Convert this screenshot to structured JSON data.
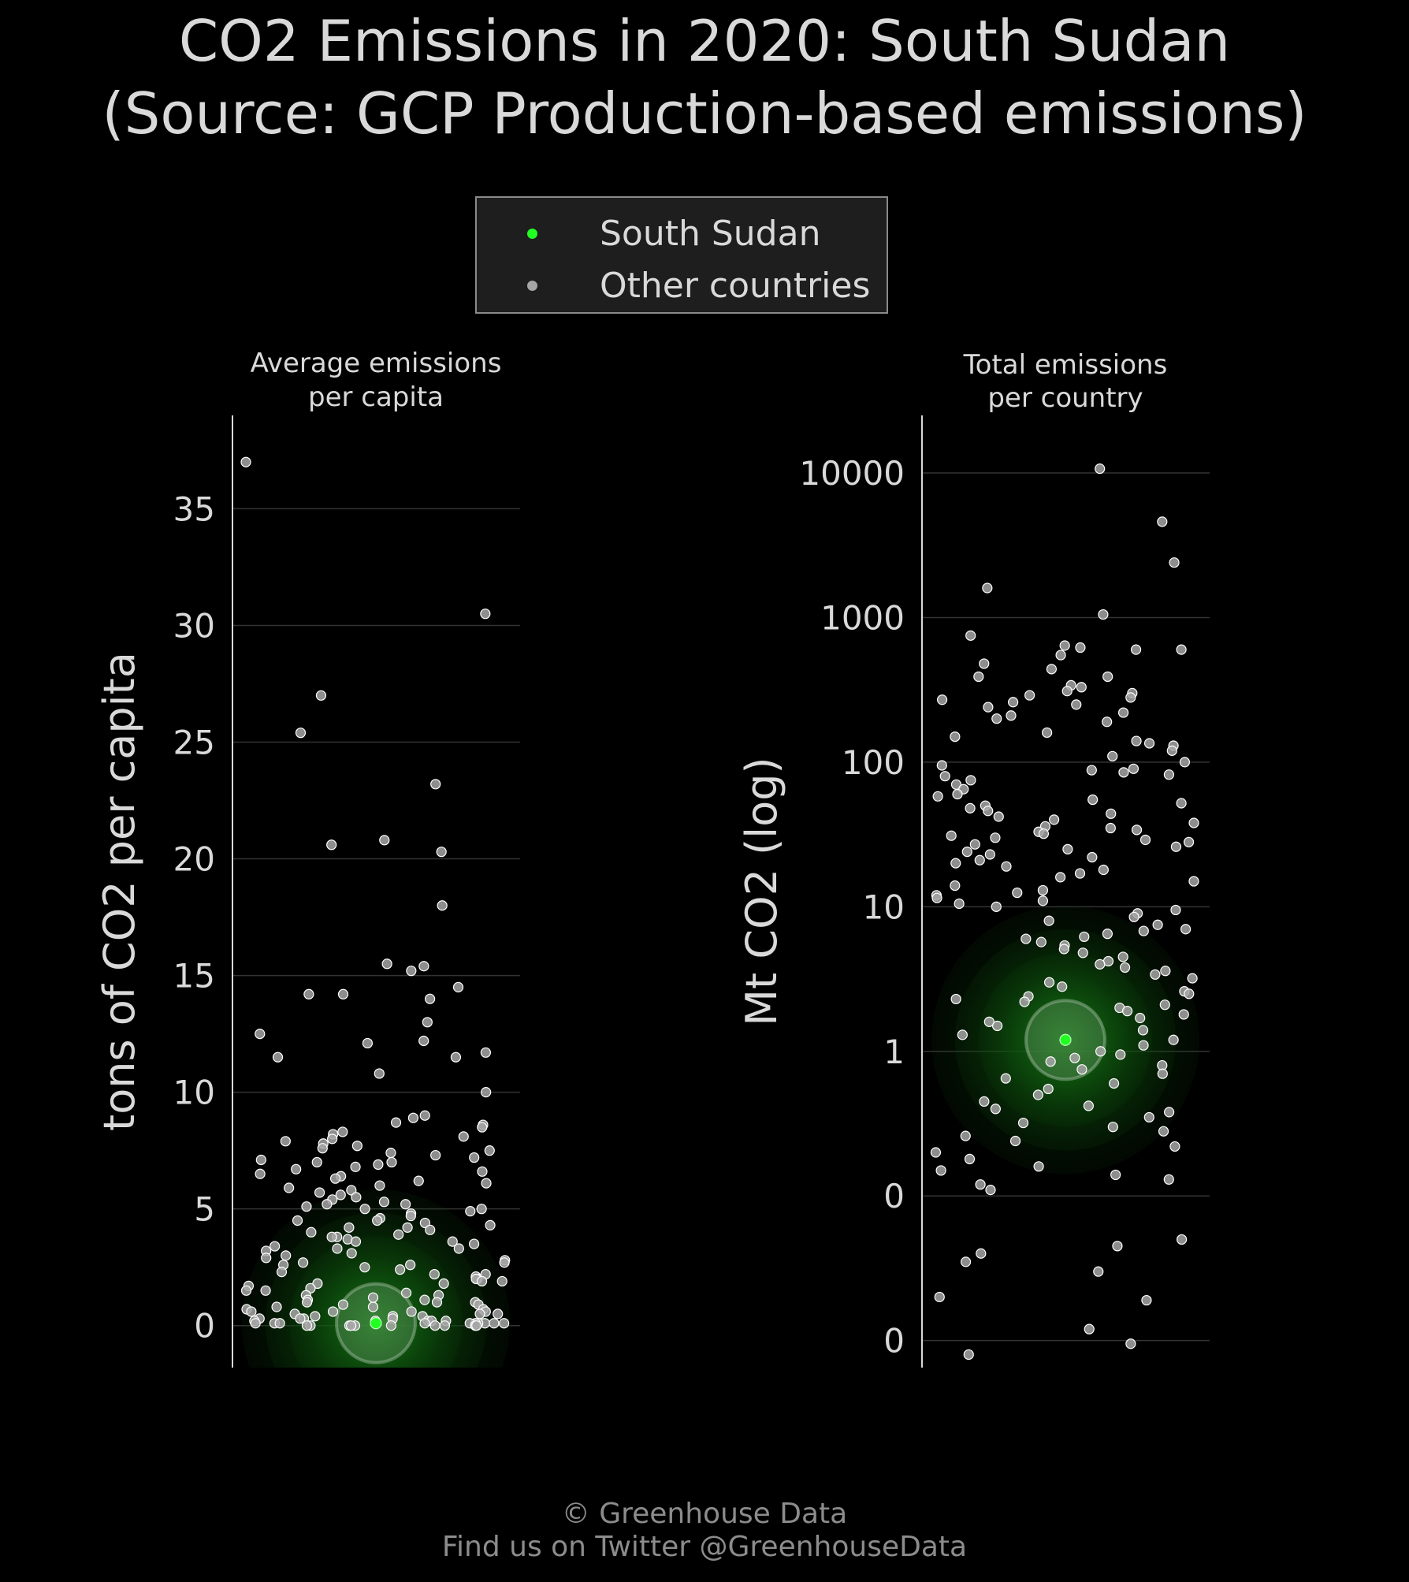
{
  "title_line1": "CO2 Emissions in 2020: South Sudan",
  "title_line2": "(Source: GCP Production-based emissions)",
  "legend": {
    "highlight": {
      "label": "South Sudan",
      "color": "#22ff22"
    },
    "others": {
      "label": "Other countries",
      "color": "#a6a6a6"
    }
  },
  "footer": {
    "line1": "© Greenhouse Data",
    "line2": "Find us on Twitter @GreenhouseData"
  },
  "chart_data": [
    {
      "type": "scatter",
      "title": "Average emissions\nper capita",
      "ylabel": "tons of CO2 per capita",
      "y_scale": "linear",
      "ylim": [
        -1.8,
        39
      ],
      "yticks": [
        0,
        5,
        10,
        15,
        20,
        25,
        30,
        35
      ],
      "ytick_labels": [
        "0",
        "5",
        "10",
        "15",
        "20",
        "25",
        "30",
        "35"
      ],
      "grid": true,
      "highlight": {
        "name": "South Sudan",
        "value": 0.1
      },
      "others": [
        37.0,
        30.5,
        27.0,
        25.4,
        23.2,
        20.8,
        20.6,
        20.3,
        18.0,
        15.5,
        15.4,
        15.2,
        14.5,
        14.2,
        14.2,
        14.0,
        13.0,
        12.5,
        12.2,
        12.1,
        11.7,
        11.5,
        11.5,
        10.8,
        10.0,
        9.0,
        8.9,
        8.7,
        8.6,
        8.5,
        8.3,
        8.2,
        8.1,
        8.0,
        7.9,
        7.8,
        7.7,
        7.6,
        7.5,
        7.4,
        7.3,
        7.2,
        7.1,
        7.0,
        7.0,
        6.9,
        6.8,
        6.7,
        6.6,
        6.5,
        6.4,
        6.3,
        6.2,
        6.1,
        6.0,
        5.9,
        5.8,
        5.7,
        5.6,
        5.5,
        5.4,
        5.3,
        5.2,
        5.1,
        5.0,
        5.0,
        4.9,
        4.8,
        4.7,
        4.6,
        4.5,
        4.4,
        4.3,
        4.2,
        4.1,
        4.0,
        3.9,
        3.8,
        3.8,
        3.7,
        3.6,
        3.5,
        3.4,
        3.3,
        3.2,
        3.1,
        3.0,
        2.9,
        2.8,
        2.7,
        2.6,
        2.6,
        2.5,
        2.4,
        2.3,
        2.2,
        2.1,
        2.0,
        2.0,
        1.9,
        1.8,
        1.8,
        1.7,
        1.6,
        1.5,
        1.5,
        1.4,
        1.3,
        1.3,
        1.2,
        1.1,
        1.1,
        1.0,
        1.0,
        0.9,
        0.9,
        0.8,
        0.8,
        0.7,
        0.7,
        0.6,
        0.6,
        0.6,
        0.5,
        0.5,
        0.5,
        0.4,
        0.4,
        0.4,
        0.3,
        0.3,
        0.3,
        0.3,
        0.2,
        0.2,
        0.2,
        0.2,
        0.2,
        0.1,
        0.1,
        0.1,
        0.1,
        0.1,
        0.1,
        0.1,
        0.1,
        0.1,
        0.1,
        0.0,
        0.0,
        0.0,
        0.0,
        0.0,
        0.0,
        0.0,
        0.0,
        0.0,
        0.0,
        3.3,
        4.2,
        1.0,
        0.6,
        2.2,
        3.6,
        4.5,
        5.2,
        1.9,
        2.7
      ]
    },
    {
      "type": "scatter",
      "title": "Total emissions\nper country",
      "ylabel": "Mt CO2 (log)",
      "y_scale": "log",
      "ylim": [
        0.0065,
        25000
      ],
      "yticks": [
        0.01,
        0.1,
        1,
        10,
        100,
        1000,
        10000
      ],
      "ytick_labels": [
        "0",
        "0",
        "1",
        "10",
        "100",
        "1000",
        "10000"
      ],
      "grid": true,
      "highlight": {
        "name": "South Sudan",
        "value": 1.2
      },
      "others": [
        10700,
        4600,
        2400,
        1600,
        1050,
        750,
        640,
        620,
        600,
        600,
        550,
        480,
        440,
        390,
        390,
        340,
        330,
        310,
        300,
        290,
        280,
        270,
        260,
        250,
        240,
        220,
        210,
        200,
        190,
        160,
        150,
        140,
        135,
        130,
        120,
        110,
        100,
        95,
        90,
        88,
        85,
        82,
        80,
        75,
        70,
        65,
        60,
        58,
        55,
        52,
        50,
        48,
        46,
        44,
        42,
        40,
        38,
        36,
        35,
        34,
        33,
        32,
        31,
        30,
        29,
        28,
        27,
        26,
        25,
        24,
        23,
        22,
        21,
        20,
        19,
        18,
        17,
        16,
        15,
        14,
        13,
        12.5,
        12,
        11.5,
        11,
        10.5,
        10,
        9.5,
        9,
        8.5,
        8,
        7.5,
        7,
        6.8,
        6.5,
        6.2,
        6,
        5.7,
        5.4,
        5.1,
        4.8,
        4.5,
        4.2,
        4,
        3.8,
        3.6,
        3.4,
        3.2,
        3,
        2.8,
        2.6,
        2.5,
        2.4,
        2.3,
        2.2,
        2.1,
        2.0,
        1.9,
        1.8,
        1.7,
        1.6,
        1.5,
        1.4,
        1.3,
        1.2,
        1.1,
        1.0,
        0.95,
        0.9,
        0.85,
        0.8,
        0.75,
        0.7,
        0.65,
        0.6,
        0.55,
        0.5,
        0.45,
        0.42,
        0.4,
        0.38,
        0.35,
        0.32,
        0.3,
        0.28,
        0.26,
        0.24,
        0.22,
        0.2,
        0.18,
        0.16,
        0.15,
        0.14,
        0.13,
        0.12,
        0.11,
        0.05,
        0.045,
        0.04,
        0.035,
        0.03,
        0.02,
        0.019,
        0.012,
        0.0095,
        0.008
      ]
    }
  ]
}
